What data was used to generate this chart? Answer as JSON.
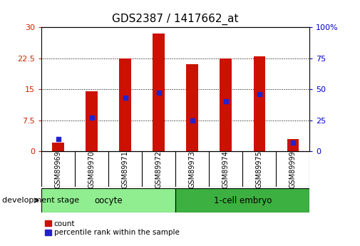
{
  "title": "GDS2387 / 1417662_at",
  "categories": [
    "GSM89969",
    "GSM89970",
    "GSM89971",
    "GSM89972",
    "GSM89973",
    "GSM89974",
    "GSM89975",
    "GSM89999"
  ],
  "counts": [
    2.1,
    14.5,
    22.5,
    28.5,
    21.0,
    22.5,
    23.0,
    3.0
  ],
  "percentiles": [
    10,
    27,
    43,
    47,
    25,
    40,
    46,
    7
  ],
  "groups": [
    {
      "label": "oocyte",
      "indices": [
        0,
        1,
        2,
        3
      ],
      "color": "#90EE90"
    },
    {
      "label": "1-cell embryo",
      "indices": [
        4,
        5,
        6,
        7
      ],
      "color": "#3CB040"
    }
  ],
  "group_label": "development stage",
  "bar_color": "#CC1100",
  "dot_color": "#2222CC",
  "ylim_left": [
    0,
    30
  ],
  "ylim_right": [
    0,
    100
  ],
  "yticks_left": [
    0,
    7.5,
    15,
    22.5,
    30
  ],
  "yticks_right": [
    0,
    25,
    50,
    75,
    100
  ],
  "bar_width": 0.35,
  "bg_color": "#FFFFFF",
  "title_fontsize": 11,
  "tick_fontsize": 8,
  "grid_color": "#000000"
}
